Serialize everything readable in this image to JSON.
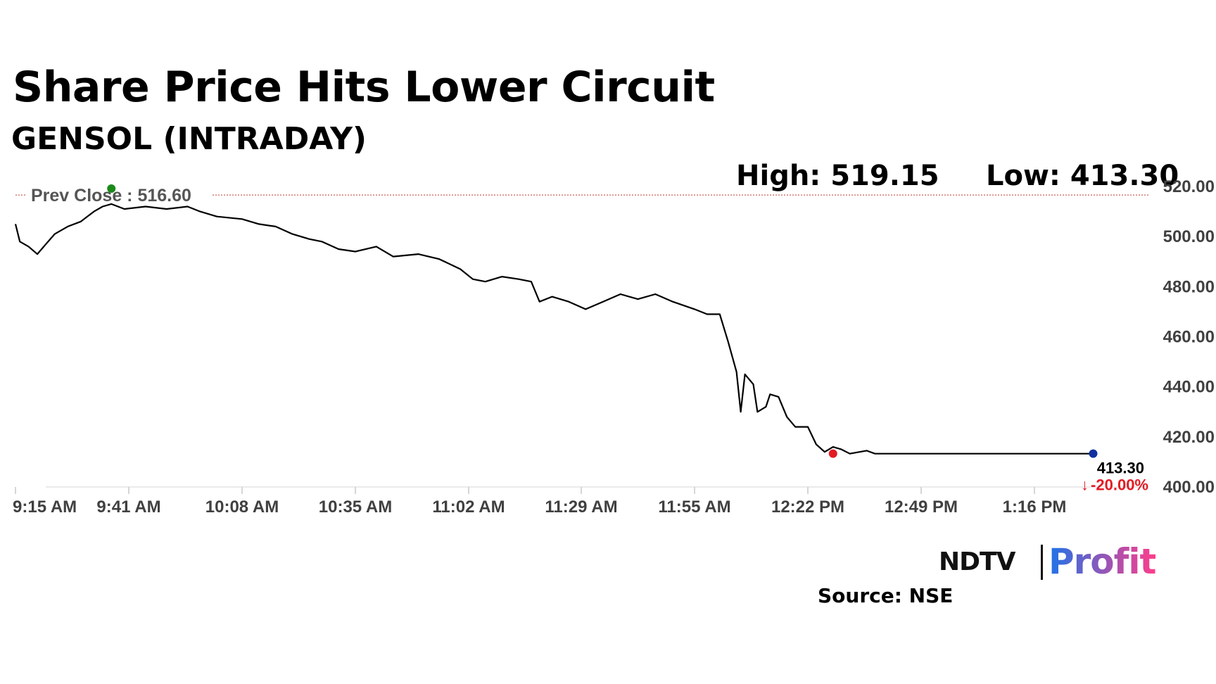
{
  "header": {
    "title": "Share Price Hits Lower Circuit",
    "subtitle": "GENSOL (INTRADAY)"
  },
  "stats": {
    "high_label": "High: 519.15",
    "low_label": "Low: 413.30"
  },
  "colors": {
    "line": "#000000",
    "prev_close": "#c0392b",
    "down": "#e31b23",
    "high_marker": "#1a8a1a",
    "low_marker": "#e31b23",
    "last_marker": "#1030a0",
    "brand_profit_start": "#1e73e8",
    "brand_profit_end": "#ff3d8b"
  },
  "brand": {
    "logo_text": "NDTV",
    "product_text": "Profit"
  },
  "footer": {
    "source": "Source: NSE"
  },
  "chart_data": {
    "type": "line",
    "title": "Share Price Hits Lower Circuit",
    "subtitle": "GENSOL (INTRADAY)",
    "xlabel": "",
    "ylabel": "",
    "x_ticks": [
      "9:15 AM",
      "9:41 AM",
      "10:08 AM",
      "10:35 AM",
      "11:02 AM",
      "11:29 AM",
      "11:55 AM",
      "12:22 PM",
      "12:49 PM",
      "1:16 PM"
    ],
    "y_ticks": [
      "400.00",
      "420.00",
      "440.00",
      "460.00",
      "480.00",
      "500.00",
      "520.00"
    ],
    "ylim": [
      400,
      520
    ],
    "grid": false,
    "prev_close": {
      "value": 516.6,
      "label": "Prev Close : 516.60"
    },
    "high": 519.15,
    "low": 413.3,
    "last": {
      "value": 413.3,
      "label": "413.30",
      "change_label": "-20.00%"
    },
    "series": [
      {
        "points": [
          [
            "9:15 AM",
            505
          ],
          [
            "9:16 AM",
            498
          ],
          [
            "9:18 AM",
            496
          ],
          [
            "9:20 AM",
            493
          ],
          [
            "9:22 AM",
            497
          ],
          [
            "9:24 AM",
            501
          ],
          [
            "9:27 AM",
            504
          ],
          [
            "9:30 AM",
            506
          ],
          [
            "9:33 AM",
            510
          ],
          [
            "9:35 AM",
            512
          ],
          [
            "9:37 AM",
            513
          ],
          [
            "9:40 AM",
            511
          ],
          [
            "9:45 AM",
            512
          ],
          [
            "9:50 AM",
            511
          ],
          [
            "9:55 AM",
            512
          ],
          [
            "9:58 AM",
            510
          ],
          [
            "10:02 AM",
            508
          ],
          [
            "10:08 AM",
            507
          ],
          [
            "10:12 AM",
            505
          ],
          [
            "10:16 AM",
            504
          ],
          [
            "10:20 AM",
            501
          ],
          [
            "10:24 AM",
            499
          ],
          [
            "10:27 AM",
            498
          ],
          [
            "10:31 AM",
            495
          ],
          [
            "10:35 AM",
            494
          ],
          [
            "10:40 AM",
            496
          ],
          [
            "10:44 AM",
            492
          ],
          [
            "10:50 AM",
            493
          ],
          [
            "10:55 AM",
            491
          ],
          [
            "11:00 AM",
            487
          ],
          [
            "11:03 AM",
            483
          ],
          [
            "11:06 AM",
            482
          ],
          [
            "11:10 AM",
            484
          ],
          [
            "11:14 AM",
            483
          ],
          [
            "11:17 AM",
            482
          ],
          [
            "11:19 AM",
            474
          ],
          [
            "11:22 AM",
            476
          ],
          [
            "11:26 AM",
            474
          ],
          [
            "11:30 AM",
            471
          ],
          [
            "11:34 AM",
            474
          ],
          [
            "11:38 AM",
            477
          ],
          [
            "11:42 AM",
            475
          ],
          [
            "11:46 AM",
            477
          ],
          [
            "11:50 AM",
            474
          ],
          [
            "11:55 AM",
            471
          ],
          [
            "11:58 AM",
            469
          ],
          [
            "12:01 PM",
            469
          ],
          [
            "12:03 PM",
            458
          ],
          [
            "12:05 PM",
            446
          ],
          [
            "12:06 PM",
            430
          ],
          [
            "12:07 PM",
            445
          ],
          [
            "12:09 PM",
            441
          ],
          [
            "12:10 PM",
            430
          ],
          [
            "12:12 PM",
            432
          ],
          [
            "12:13 PM",
            437
          ],
          [
            "12:15 PM",
            436
          ],
          [
            "12:17 PM",
            428
          ],
          [
            "12:19 PM",
            424
          ],
          [
            "12:22 PM",
            424
          ],
          [
            "12:24 PM",
            417
          ],
          [
            "12:26 PM",
            414
          ],
          [
            "12:28 PM",
            416
          ],
          [
            "12:30 PM",
            415
          ],
          [
            "12:32 PM",
            413.3
          ],
          [
            "12:36 PM",
            414.5
          ],
          [
            "12:38 PM",
            413.3
          ],
          [
            "1:16 PM",
            413.3
          ],
          [
            "1:30 PM",
            413.3
          ]
        ]
      }
    ]
  }
}
